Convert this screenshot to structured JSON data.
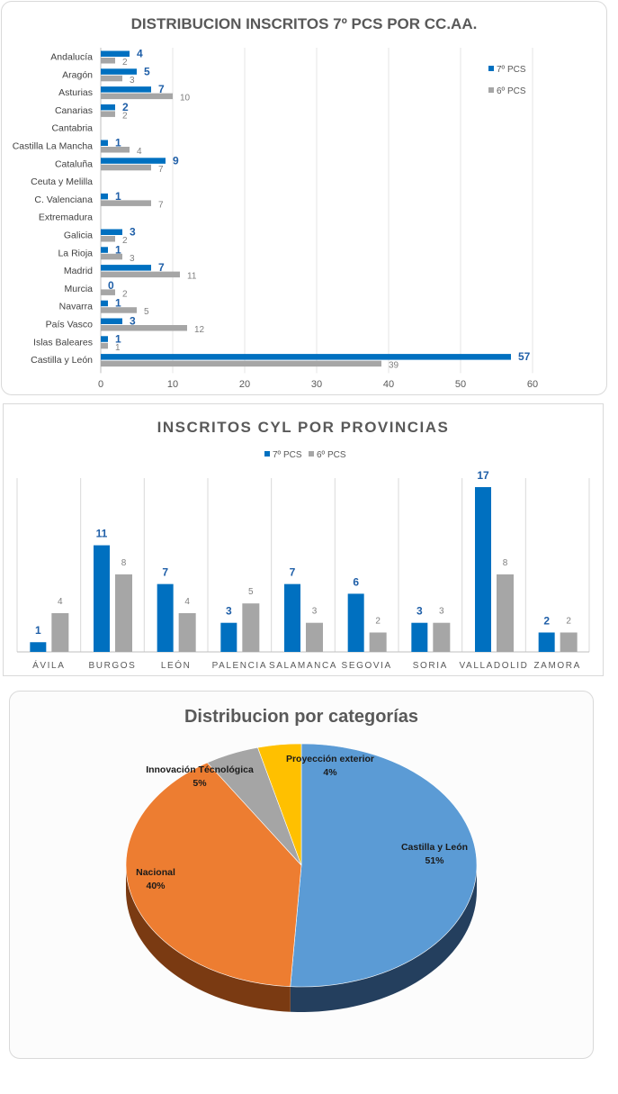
{
  "chart_data": [
    {
      "type": "bar",
      "orientation": "horizontal",
      "title": "DISTRIBUCION INSCRITOS 7º PCS POR CC.AA.",
      "categories": [
        "Andalucía",
        "Aragón",
        "Asturias",
        "Canarias",
        "Cantabria",
        "Castilla La Mancha",
        "Cataluña",
        "Ceuta y Melilla",
        "C. Valenciana",
        "Extremadura",
        "Galicia",
        "La Rioja",
        "Madrid",
        "Murcia",
        "Navarra",
        "País Vasco",
        "Islas Baleares",
        "Castilla y León"
      ],
      "series": [
        {
          "name": "7º PCS",
          "color": "#0070c0",
          "values": [
            4,
            5,
            7,
            2,
            null,
            1,
            9,
            null,
            1,
            null,
            3,
            1,
            7,
            0,
            1,
            3,
            1,
            57
          ]
        },
        {
          "name": "6º PCS",
          "color": "#a6a6a6",
          "values": [
            2,
            3,
            10,
            2,
            null,
            4,
            7,
            null,
            7,
            null,
            2,
            3,
            11,
            2,
            5,
            12,
            1,
            39
          ]
        }
      ],
      "xlim": [
        0,
        60
      ],
      "xticks": [
        0,
        10,
        20,
        30,
        40,
        50,
        60
      ],
      "grid": true,
      "legend": "right"
    },
    {
      "type": "bar",
      "title": "INSCRITOS CYL POR PROVINCIAS",
      "categories": [
        "ÁVILA",
        "BURGOS",
        "LEÓN",
        "PALENCIA",
        "SALAMANCA",
        "SEGOVIA",
        "SORIA",
        "VALLADOLID",
        "ZAMORA"
      ],
      "series": [
        {
          "name": "7º PCS",
          "color": "#0070c0",
          "values": [
            1,
            11,
            7,
            3,
            7,
            6,
            3,
            17,
            2
          ]
        },
        {
          "name": "6º PCS",
          "color": "#a6a6a6",
          "values": [
            4,
            8,
            4,
            5,
            3,
            2,
            3,
            8,
            2
          ]
        }
      ],
      "ylim": [
        0,
        17
      ],
      "grid": false,
      "legend": "top"
    },
    {
      "type": "pie",
      "title": "Distribucion por categorías",
      "slices": [
        {
          "label": "Castilla y León",
          "value": 51,
          "pct_label": "51%",
          "color": "#5b9bd5",
          "dark": "#243f5e"
        },
        {
          "label": "Nacional",
          "value": 40,
          "pct_label": "40%",
          "color": "#ed7d31",
          "dark": "#7a3a12"
        },
        {
          "label": "Innovación Técnológica",
          "value": 5,
          "pct_label": "5%",
          "color": "#a5a5a5",
          "dark": "#555555"
        },
        {
          "label": "Proyección exterior",
          "value": 4,
          "pct_label": "4%",
          "color": "#ffc000",
          "dark": "#806000"
        }
      ],
      "style": "3d"
    }
  ]
}
